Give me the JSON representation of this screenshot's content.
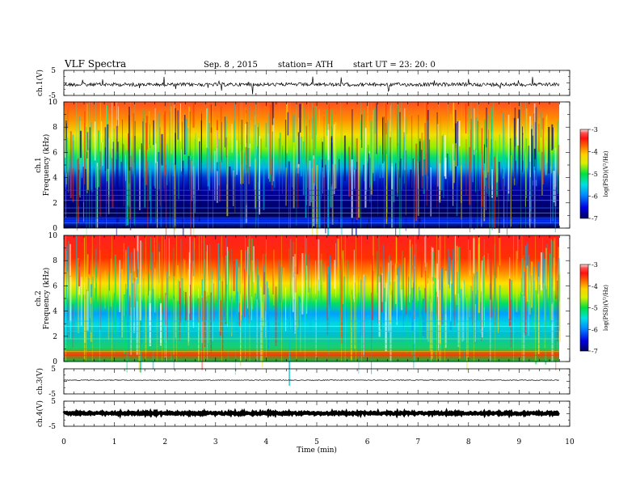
{
  "header": {
    "title": "VLF  Spectra",
    "date": "Sep. 8  , 2015",
    "station": "station= ATH",
    "start": "start  UT  =    23: 20: 0"
  },
  "chart_data": [
    {
      "type": "line",
      "panel": "ch1-waveform",
      "ylabel": "ch.1(V)",
      "ylim": [
        -5,
        5
      ],
      "y_ticks": [
        "5",
        "-5"
      ],
      "xlim": [
        0,
        10
      ],
      "color": "#000000"
    },
    {
      "type": "heatmap",
      "panel": "ch1-spectrogram",
      "ylabel": "ch.1\nFrequency  (kHz)",
      "ylabel_line1": "ch.1",
      "ylabel_line2": "Frequency  (kHz)",
      "ylim": [
        0,
        10
      ],
      "y_ticks": [
        "0",
        "2",
        "4",
        "6",
        "8",
        "10"
      ],
      "xlim": [
        0,
        10
      ],
      "colorbar": {
        "label": "log(PSD)(V²/Hz)",
        "ticks": [
          "-3",
          "-4",
          "-5",
          "-6",
          "-7"
        ],
        "range": [
          -7,
          -3
        ]
      }
    },
    {
      "type": "heatmap",
      "panel": "ch2-spectrogram",
      "ylabel": "ch.2\nFrequency  (kHz)",
      "ylabel_line1": "ch.2",
      "ylabel_line2": "Frequency  (kHz)",
      "ylim": [
        0,
        10
      ],
      "y_ticks": [
        "0",
        "2",
        "4",
        "6",
        "8",
        "10"
      ],
      "xlim": [
        0,
        10
      ],
      "colorbar": {
        "label": "log(PSD)(V²/Hz)",
        "ticks": [
          "-3",
          "-4",
          "-5",
          "-6",
          "-7"
        ],
        "range": [
          -7,
          -3
        ]
      }
    },
    {
      "type": "line",
      "panel": "ch3-waveform",
      "ylabel": "ch.3(V)",
      "ylim": [
        -5,
        5
      ],
      "y_ticks": [
        "5",
        "-5"
      ],
      "xlim": [
        0,
        10
      ],
      "color": "#000000"
    },
    {
      "type": "line",
      "panel": "ch4-waveform",
      "ylabel": "ch.4(V)",
      "ylim": [
        -5,
        5
      ],
      "y_ticks": [
        "5",
        "-5"
      ],
      "xlim": [
        0,
        10
      ],
      "color": "#000000"
    }
  ],
  "x_axis": {
    "label": "Time  (min)",
    "ticks": [
      "0",
      "1",
      "2",
      "3",
      "4",
      "5",
      "6",
      "7",
      "8",
      "9",
      "10"
    ]
  }
}
